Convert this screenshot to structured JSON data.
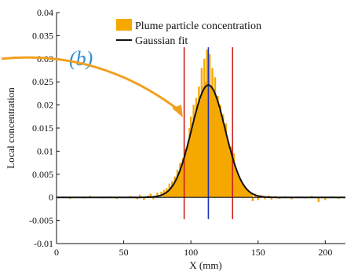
{
  "chart_data": {
    "type": "bar",
    "title": "",
    "panel_label": "(b)",
    "xlabel": "X (mm)",
    "ylabel": "Local concentration",
    "xlim": [
      0,
      215
    ],
    "ylim": [
      -0.01,
      0.04
    ],
    "xticks": [
      "0",
      "50",
      "100",
      "150",
      "200"
    ],
    "yticks": [
      "-0.01",
      "-0.005",
      "0",
      "0.005",
      "0.01",
      "0.015",
      "0.02",
      "0.025",
      "0.03",
      "0.035",
      "0.04"
    ],
    "grid": false,
    "legend_position": "top-right",
    "series": [
      {
        "name": "Plume particle concentration",
        "kind": "bar",
        "color": "#f5a800",
        "x": [
          [
            5,
            0.0002
          ],
          [
            10,
            -0.0003
          ],
          [
            15,
            0.0001
          ],
          [
            20,
            -0.0002
          ],
          [
            25,
            0.0003
          ],
          [
            30,
            0.0001
          ],
          [
            35,
            -0.0002
          ],
          [
            40,
            0.0002
          ],
          [
            45,
            -0.0003
          ],
          [
            50,
            0.0001
          ],
          [
            55,
            0.0003
          ],
          [
            60,
            -0.0004
          ],
          [
            62,
            0.0006
          ],
          [
            65,
            -0.0006
          ],
          [
            68,
            0.0004
          ],
          [
            70,
            0.0008
          ],
          [
            72,
            -0.0004
          ],
          [
            75,
            0.001
          ],
          [
            78,
            0.0012
          ],
          [
            80,
            0.0016
          ],
          [
            82,
            0.002
          ],
          [
            84,
            0.003
          ],
          [
            86,
            0.0035
          ],
          [
            88,
            0.0045
          ],
          [
            90,
            0.006
          ],
          [
            92,
            0.0075
          ],
          [
            94,
            0.0085
          ],
          [
            96,
            0.0105
          ],
          [
            98,
            0.012
          ],
          [
            99,
            0.015
          ],
          [
            100,
            0.0175
          ],
          [
            101,
            0.015
          ],
          [
            102,
            0.02
          ],
          [
            103,
            0.018
          ],
          [
            104,
            0.0215
          ],
          [
            105,
            0.0195
          ],
          [
            106,
            0.024
          ],
          [
            107,
            0.021
          ],
          [
            108,
            0.028
          ],
          [
            109,
            0.024
          ],
          [
            110,
            0.03
          ],
          [
            111,
            0.025
          ],
          [
            112,
            0.032
          ],
          [
            113,
            0.026
          ],
          [
            114,
            0.031
          ],
          [
            115,
            0.024
          ],
          [
            116,
            0.028
          ],
          [
            117,
            0.023
          ],
          [
            118,
            0.026
          ],
          [
            119,
            0.021
          ],
          [
            120,
            0.022
          ],
          [
            121,
            0.019
          ],
          [
            122,
            0.02
          ],
          [
            123,
            0.017
          ],
          [
            124,
            0.018
          ],
          [
            125,
            0.015
          ],
          [
            126,
            0.016
          ],
          [
            127,
            0.0125
          ],
          [
            128,
            0.012
          ],
          [
            129,
            0.01
          ],
          [
            130,
            0.011
          ],
          [
            131,
            0.008
          ],
          [
            132,
            0.0095
          ],
          [
            134,
            0.006
          ],
          [
            136,
            0.0045
          ],
          [
            138,
            0.003
          ],
          [
            140,
            0.002
          ],
          [
            142,
            0.0015
          ],
          [
            144,
            0.0012
          ],
          [
            146,
            -0.0008
          ],
          [
            148,
            0.0008
          ],
          [
            150,
            -0.0006
          ],
          [
            152,
            0.0005
          ],
          [
            155,
            -0.0004
          ],
          [
            158,
            0.0004
          ],
          [
            160,
            -0.0005
          ],
          [
            163,
            0.0003
          ],
          [
            166,
            -0.0003
          ],
          [
            170,
            0.0002
          ],
          [
            175,
            -0.0004
          ],
          [
            180,
            0.0002
          ],
          [
            185,
            -0.0002
          ],
          [
            190,
            0.0003
          ],
          [
            195,
            -0.001
          ],
          [
            198,
            0.0002
          ],
          [
            200,
            -0.0006
          ],
          [
            205,
            0.0002
          ],
          [
            210,
            -0.0003
          ]
        ]
      },
      {
        "name": "Gaussian fit",
        "kind": "line",
        "color": "#111111",
        "amplitude": 0.0243,
        "center": 113,
        "sigma": 12.5
      }
    ],
    "vertical_lines": [
      {
        "x": 95,
        "color": "#cc2222"
      },
      {
        "x": 113,
        "color": "#2233bb"
      },
      {
        "x": 131,
        "color": "#cc2222"
      }
    ],
    "annotation_arrow": {
      "color": "#f0a020",
      "from_x": 0,
      "from_y": 0.03,
      "to_x": 94,
      "to_y": 0.019
    }
  }
}
